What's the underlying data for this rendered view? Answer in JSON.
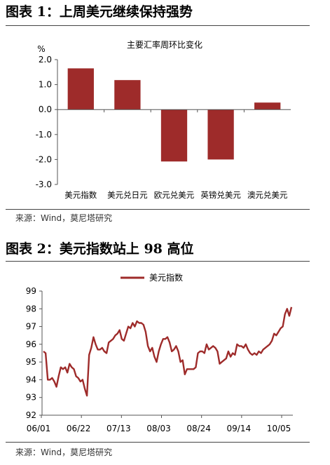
{
  "figures": [
    {
      "title": "图表 1：上周美元继续保持强势",
      "source": "来源：Wind，莫尼塔研究"
    },
    {
      "title": "图表 2：美元指数站上 98 高位",
      "source": "来源：Wind，莫尼塔研究"
    }
  ],
  "colors": {
    "series": "#9e2b2a",
    "axis": "#555555"
  },
  "chart_data": [
    {
      "type": "bar",
      "title": "主要汇率周环比变化",
      "unit": "%",
      "categories": [
        "美元指数",
        "美元兑日元",
        "欧元兑美元",
        "英镑兑美元",
        "澳元兑美元"
      ],
      "values": [
        1.65,
        1.18,
        -2.08,
        -2.0,
        0.28
      ],
      "ylim": [
        -3.0,
        2.0
      ],
      "yticks": [
        "2.0",
        "1.0",
        "0.0",
        "-1.0",
        "-2.0",
        "-3.0"
      ],
      "grid": false
    },
    {
      "type": "line",
      "series": [
        {
          "name": "美元指数",
          "values": [
            95.6,
            95.5,
            94.0,
            94.0,
            94.1,
            93.9,
            93.6,
            94.2,
            94.7,
            94.6,
            94.7,
            94.4,
            94.9,
            94.7,
            94.6,
            94.2,
            94.1,
            93.9,
            94.0,
            93.5,
            93.1,
            95.4,
            95.8,
            96.4,
            96.0,
            95.7,
            95.7,
            95.8,
            95.6,
            95.5,
            96.1,
            96.2,
            96.3,
            96.5,
            96.6,
            96.8,
            96.3,
            96.2,
            96.6,
            97.0,
            96.9,
            97.2,
            97.0,
            97.3,
            97.2,
            97.2,
            97.1,
            96.7,
            95.9,
            95.6,
            95.8,
            95.3,
            95.0,
            95.6,
            96.0,
            96.3,
            96.3,
            96.4,
            96.1,
            95.6,
            95.7,
            95.9,
            95.6,
            95.0,
            95.1,
            94.3,
            94.6,
            94.6,
            94.6,
            94.6,
            94.7,
            95.5,
            95.6,
            95.6,
            95.5,
            96.0,
            95.7,
            95.8,
            95.9,
            95.8,
            95.6,
            94.9,
            95.0,
            95.1,
            95.2,
            95.6,
            95.3,
            95.5,
            95.4,
            96.0,
            95.9,
            95.9,
            95.8,
            96.0,
            95.7,
            95.5,
            95.4,
            95.5,
            95.4,
            95.6,
            95.5,
            95.7,
            95.8,
            95.9,
            96.0,
            96.2,
            96.6,
            96.5,
            96.7,
            96.9,
            97.0,
            97.7,
            98.0,
            97.6,
            98.1
          ]
        }
      ],
      "xticks": [
        "06/01",
        "06/22",
        "07/13",
        "08/03",
        "08/24",
        "09/14",
        "10/05"
      ],
      "yticks": [
        "99",
        "98",
        "97",
        "96",
        "95",
        "94",
        "93",
        "92"
      ],
      "ylim": [
        92,
        99
      ],
      "legend": "top-center",
      "grid": false
    }
  ]
}
